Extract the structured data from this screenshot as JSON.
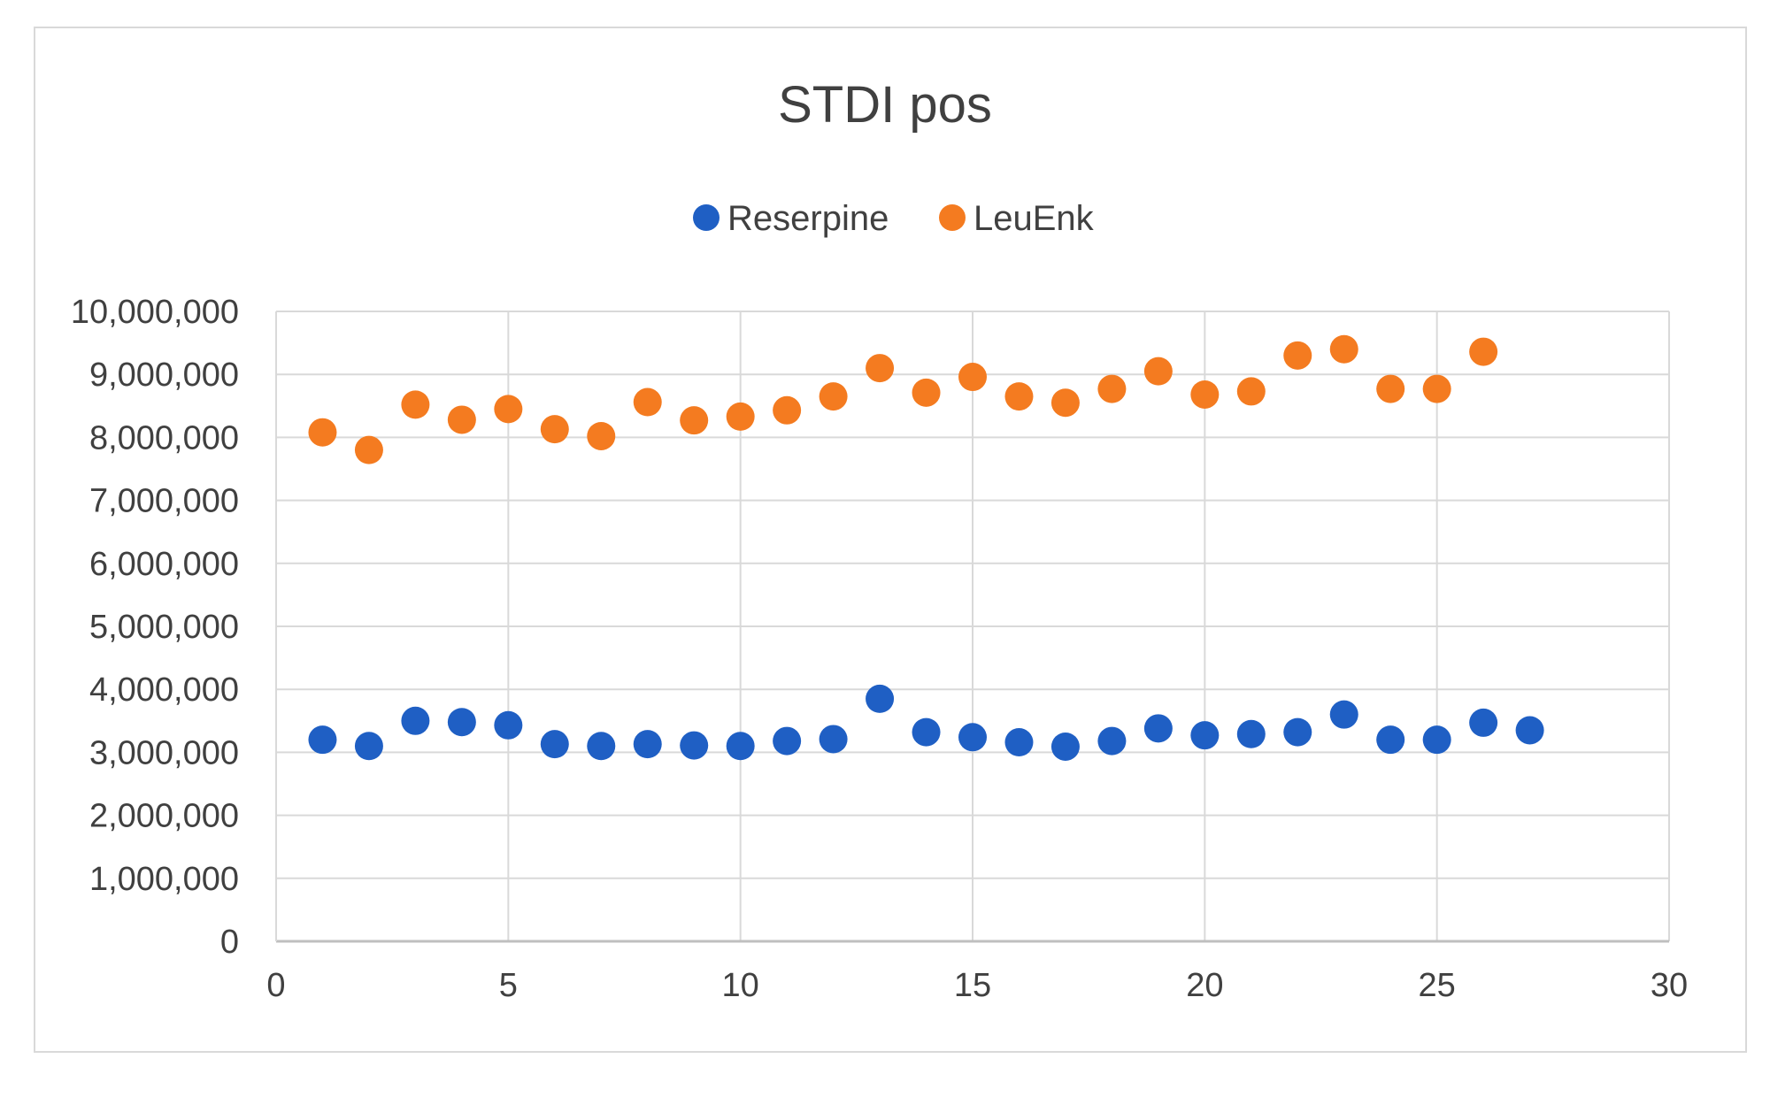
{
  "chart_data": {
    "type": "scatter",
    "title": "STDI pos",
    "xlabel": "",
    "ylabel": "",
    "xlim": [
      0,
      30
    ],
    "ylim": [
      0,
      10000000
    ],
    "x_ticks": [
      0,
      5,
      10,
      15,
      20,
      25,
      30
    ],
    "y_ticks": [
      0,
      1000000,
      2000000,
      3000000,
      4000000,
      5000000,
      6000000,
      7000000,
      8000000,
      9000000,
      10000000
    ],
    "x_tick_labels": [
      "0",
      "5",
      "10",
      "15",
      "20",
      "25",
      "30"
    ],
    "y_tick_labels": [
      "0",
      "1,000,000",
      "2,000,000",
      "3,000,000",
      "4,000,000",
      "5,000,000",
      "6,000,000",
      "7,000,000",
      "8,000,000",
      "9,000,000",
      "10,000,000"
    ],
    "grid": true,
    "legend_position": "top",
    "series": [
      {
        "name": "Reserpine",
        "color": "#1f5fc4",
        "x": [
          1,
          2,
          3,
          4,
          5,
          6,
          7,
          8,
          9,
          10,
          11,
          12,
          13,
          14,
          15,
          16,
          17,
          18,
          19,
          20,
          21,
          22,
          23,
          24,
          25,
          26,
          27
        ],
        "y": [
          3200000,
          3100000,
          3500000,
          3480000,
          3430000,
          3130000,
          3100000,
          3130000,
          3110000,
          3100000,
          3180000,
          3210000,
          3850000,
          3320000,
          3240000,
          3160000,
          3090000,
          3180000,
          3380000,
          3270000,
          3290000,
          3320000,
          3600000,
          3200000,
          3200000,
          3470000,
          3350000
        ]
      },
      {
        "name": "LeuEnk",
        "color": "#f47b20",
        "x": [
          1,
          2,
          3,
          4,
          5,
          6,
          7,
          8,
          9,
          10,
          11,
          12,
          13,
          14,
          15,
          16,
          17,
          18,
          19,
          20,
          21,
          22,
          23,
          24,
          25,
          26
        ],
        "y": [
          8080000,
          7800000,
          8520000,
          8280000,
          8450000,
          8130000,
          8020000,
          8560000,
          8270000,
          8330000,
          8430000,
          8650000,
          9100000,
          8710000,
          8960000,
          8650000,
          8550000,
          8770000,
          9050000,
          8680000,
          8730000,
          9300000,
          9400000,
          8770000,
          8770000,
          9360000
        ]
      }
    ]
  }
}
